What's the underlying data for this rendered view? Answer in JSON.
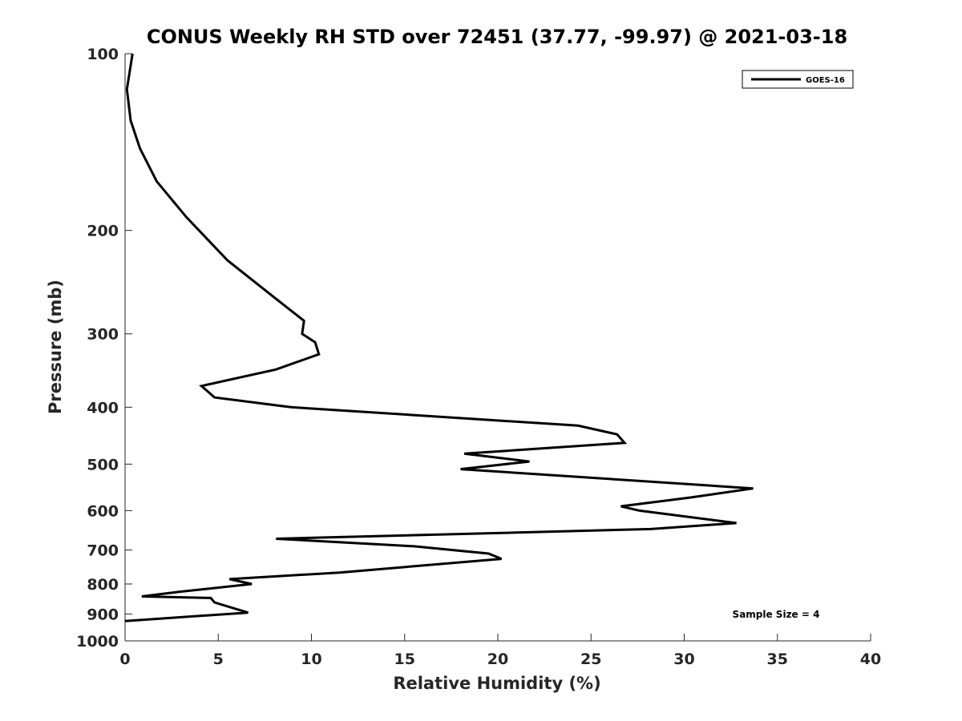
{
  "chart_data": {
    "type": "line",
    "title": "CONUS Weekly RH STD over 72451 (37.77, -99.97) @ 2021-03-18",
    "xlabel": "Relative Humidity (%)",
    "ylabel": "Pressure (mb)",
    "xlim": [
      0,
      40
    ],
    "ylim": [
      100,
      1000
    ],
    "y_scale": "log",
    "y_direction": "reversed",
    "x_ticks": [
      "0",
      "5",
      "10",
      "15",
      "20",
      "25",
      "30",
      "35",
      "40"
    ],
    "y_ticks": [
      {
        "value": 100,
        "label": "100"
      },
      {
        "value": 200,
        "label": "200"
      },
      {
        "value": 300,
        "label": "300"
      },
      {
        "value": 400,
        "label": "400"
      },
      {
        "value": 500,
        "label": "500"
      },
      {
        "value": 600,
        "label": "600"
      },
      {
        "value": 700,
        "label": "700"
      },
      {
        "value": 800,
        "label": "800"
      },
      {
        "value": 900,
        "label": "900"
      },
      {
        "value": 1000,
        "label": "1000"
      }
    ],
    "legend_position": "top-right",
    "series": [
      {
        "name": "GOES-16",
        "color": "#000000",
        "x": [
          0.4,
          0.1,
          0.3,
          0.8,
          1.7,
          3.3,
          5.5,
          8.0,
          9.6,
          9.5,
          10.2,
          10.4,
          8.1,
          4.1,
          4.8,
          8.9,
          24.3,
          26.4,
          26.8,
          18.2,
          21.7,
          18.0,
          33.7,
          30.3,
          26.6,
          27.6,
          32.8,
          28.2,
          8.1,
          15.5,
          19.5,
          20.2,
          11.5,
          5.6,
          6.8,
          2.9,
          0.9,
          4.6,
          4.8,
          6.6,
          0.0
        ],
        "y": [
          100,
          115,
          130,
          145,
          165,
          190,
          225,
          260,
          285,
          300,
          310,
          325,
          345,
          368,
          385,
          400,
          430,
          445,
          460,
          480,
          495,
          510,
          550,
          570,
          590,
          600,
          630,
          645,
          670,
          690,
          710,
          725,
          765,
          785,
          800,
          825,
          840,
          845,
          860,
          895,
          925
        ]
      }
    ],
    "annotation": "Sample Size = 4"
  }
}
